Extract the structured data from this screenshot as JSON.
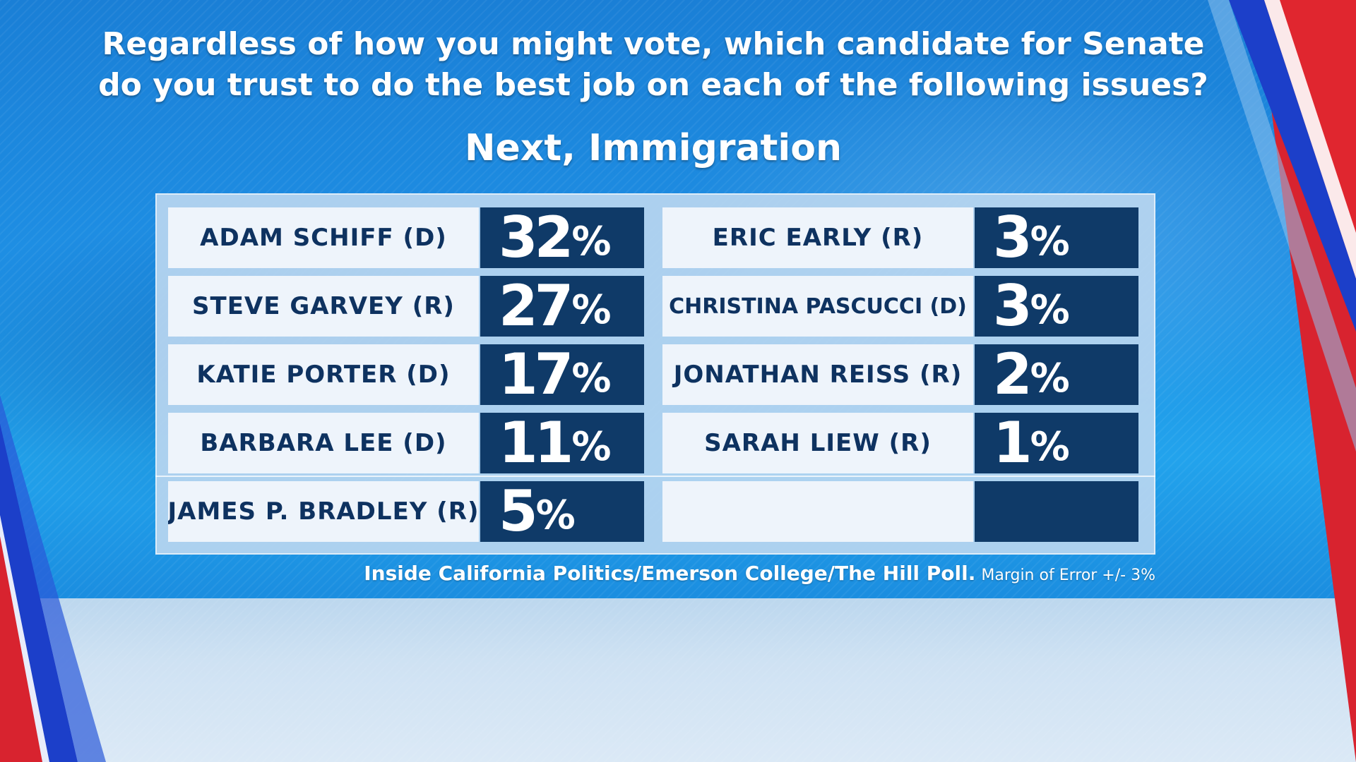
{
  "question": {
    "line1": "Regardless of how you might vote, which candidate for Senate",
    "line2": "do you trust to do the best job on each of the following issues?"
  },
  "subtitle": "Next, Immigration",
  "colors": {
    "name_cell_bg": "#eef4fb",
    "name_text": "#0e3260",
    "value_cell_bg": "#0f3a68",
    "value_text": "#ffffff",
    "background_blue": "#1e8fe4",
    "accent_red": "#d8232f",
    "accent_blue_stripe": "#1c3fc9"
  },
  "chart_data": {
    "type": "table",
    "title": "Next, Immigration",
    "unit": "%",
    "columns": [
      {
        "rows": [
          {
            "name": "ADAM SCHIFF (D)",
            "value": 32,
            "value_label": "32",
            "pct": "%"
          },
          {
            "name": "STEVE GARVEY (R)",
            "value": 27,
            "value_label": "27",
            "pct": "%"
          },
          {
            "name": "KATIE PORTER (D)",
            "value": 17,
            "value_label": "17",
            "pct": "%"
          },
          {
            "name": "BARBARA LEE (D)",
            "value": 11,
            "value_label": "11",
            "pct": "%"
          },
          {
            "name": "JAMES P. BRADLEY (R)",
            "value": 5,
            "value_label": "5",
            "pct": "%"
          }
        ]
      },
      {
        "rows": [
          {
            "name": "ERIC EARLY (R)",
            "value": 3,
            "value_label": "3",
            "pct": "%"
          },
          {
            "name": "CHRISTINA PASCUCCI (D)",
            "value": 3,
            "value_label": "3",
            "pct": "%"
          },
          {
            "name": "JONATHAN REISS (R)",
            "value": 2,
            "value_label": "2",
            "pct": "%"
          },
          {
            "name": "SARAH LIEW (R)",
            "value": 1,
            "value_label": "1",
            "pct": "%"
          }
        ]
      }
    ]
  },
  "source": {
    "poll": "Inside California Politics/Emerson College/The Hill Poll.",
    "margin_of_error": "Margin of Error +/- 3%"
  }
}
